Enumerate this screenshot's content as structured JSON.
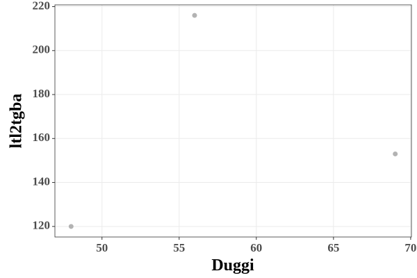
{
  "chart_data": {
    "type": "scatter",
    "x_label": "Duggi",
    "y_label": "ltl2tgba",
    "series": [
      {
        "color": "#b3b3b3",
        "x": [
          48,
          56,
          69
        ],
        "values": [
          120,
          216,
          153
        ]
      }
    ],
    "xlim": [
      46.95,
      70.05
    ],
    "xticks": [
      50,
      55,
      60,
      65,
      70
    ],
    "ylim": [
      115.2,
      220.8
    ],
    "yticks": [
      120,
      140,
      160,
      180,
      200,
      220
    ],
    "grid": true
  }
}
